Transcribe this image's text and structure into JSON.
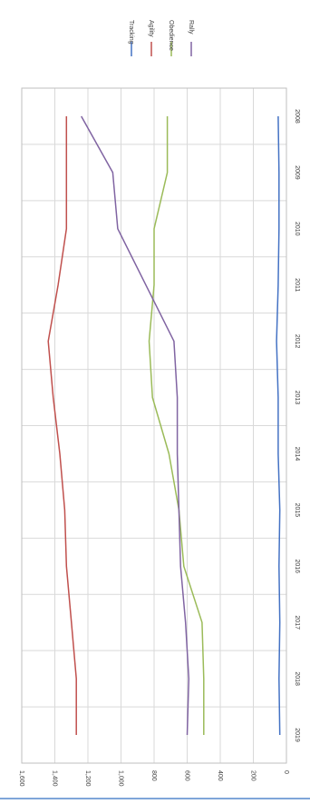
{
  "chart_data": {
    "type": "line",
    "orientation": "rotated-90-clockwise",
    "x": [
      "2008",
      "2009",
      "2010",
      "2011",
      "2012",
      "2013",
      "2014",
      "2015",
      "2016",
      "2017",
      "2018",
      "2019"
    ],
    "ylim": [
      0,
      1600
    ],
    "yticks": [
      0,
      200,
      400,
      600,
      800,
      1000,
      1200,
      1400,
      1600
    ],
    "ytick_labels": [
      "0",
      "200",
      "400",
      "600",
      "800",
      "1,000",
      "1,200",
      "1,400",
      "1,600"
    ],
    "grid": true,
    "legend_position": "top",
    "series": [
      {
        "name": "Tracking",
        "color": "#4472c4",
        "values": [
          50,
          45,
          45,
          50,
          60,
          50,
          50,
          40,
          45,
          40,
          45,
          40
        ]
      },
      {
        "name": "Agility",
        "color": "#c0504d",
        "values": [
          1330,
          1330,
          1330,
          1380,
          1440,
          1410,
          1370,
          1340,
          1330,
          1300,
          1270,
          1270
        ]
      },
      {
        "name": "Obedience",
        "color": "#9bbb59",
        "values": [
          720,
          720,
          800,
          800,
          830,
          810,
          710,
          650,
          620,
          510,
          500,
          500
        ]
      },
      {
        "name": "Rally",
        "color": "#8064a2",
        "values": [
          1240,
          1050,
          1020,
          850,
          680,
          660,
          660,
          650,
          640,
          610,
          590,
          600
        ]
      }
    ]
  }
}
